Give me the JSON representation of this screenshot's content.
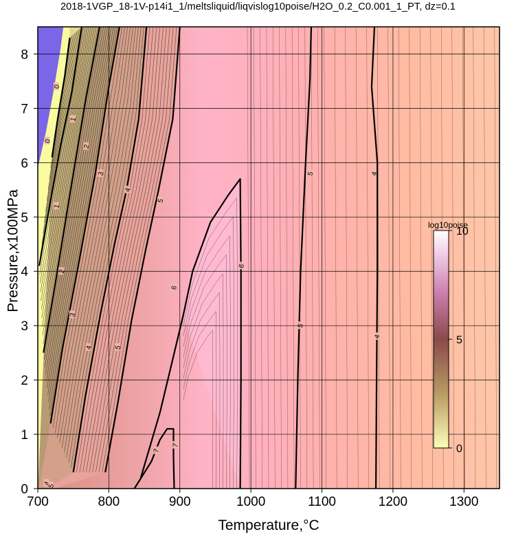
{
  "title": "2018-1VGP_18-1V-p14i1_1/meltsliquid/liqvislog10poise/H2O_0.2_C0.001_1_PT, dz=0.1",
  "chart_data": {
    "type": "heatmap",
    "subtype": "contour",
    "xlabel": "Temperature,°C",
    "ylabel": "Pressure,x100MPa",
    "xlim": [
      700,
      1350
    ],
    "ylim": [
      0,
      8.5
    ],
    "x_ticks": [
      700,
      800,
      900,
      1000,
      1100,
      1200,
      1300
    ],
    "x_tick_labels": [
      "700",
      "800",
      "900",
      "1000",
      "1100",
      "1200",
      "1300"
    ],
    "y_ticks": [
      0,
      1,
      2,
      3,
      4,
      5,
      6,
      7,
      8
    ],
    "y_tick_labels": [
      "0",
      "1",
      "2",
      "3",
      "4",
      "5",
      "6",
      "7",
      "8"
    ],
    "grid": true,
    "colorbar": {
      "title": "log10poise",
      "range": [
        0,
        10
      ],
      "tick_values": [
        0,
        5,
        10
      ],
      "tick_labels": [
        "0",
        "5",
        "10"
      ],
      "colors": [
        "#fdfdb8",
        "#8a5a4a",
        "#c87aa8",
        "#ffffff"
      ]
    },
    "contour_interval": 0.1,
    "major_contours": [
      {
        "level": 0,
        "label": "0",
        "points": [
          [
            720,
            6.1
          ],
          [
            728,
            6.8
          ],
          [
            738,
            7.6
          ],
          [
            745,
            8.3
          ]
        ]
      },
      {
        "level": 1,
        "label": "1",
        "points": [
          [
            702,
            4.1
          ],
          [
            718,
            5.3
          ],
          [
            732,
            6.3
          ],
          [
            748,
            7.3
          ],
          [
            762,
            8.5
          ]
        ]
      },
      {
        "level": 2,
        "label": "2",
        "points": [
          [
            708,
            2.5
          ],
          [
            725,
            3.8
          ],
          [
            745,
            5.4
          ],
          [
            768,
            7.2
          ],
          [
            787,
            8.5
          ]
        ]
      },
      {
        "level": 3,
        "label": "3",
        "points": [
          [
            718,
            1.2
          ],
          [
            735,
            2.6
          ],
          [
            757,
            4.1
          ],
          [
            781,
            5.8
          ],
          [
            800,
            7.4
          ],
          [
            815,
            8.5
          ]
        ]
      },
      {
        "level": 4,
        "label": "4",
        "points": [
          [
            750,
            0.3
          ],
          [
            767,
            1.7
          ],
          [
            788,
            3.2
          ],
          [
            808,
            4.5
          ],
          [
            825,
            5.5
          ],
          [
            842,
            6.8
          ],
          [
            853,
            8.5
          ]
        ]
      },
      {
        "level": 5,
        "label": "5",
        "points": [
          [
            795,
            0.3
          ],
          [
            813,
            1.6
          ],
          [
            832,
            3.1
          ],
          [
            852,
            4.4
          ],
          [
            870,
            5.5
          ],
          [
            890,
            6.8
          ],
          [
            900,
            8.5
          ]
        ]
      },
      {
        "level": 6,
        "label": "6",
        "points": [
          [
            845,
            0.2
          ],
          [
            872,
            1.4
          ],
          [
            905,
            3.2
          ],
          [
            918,
            4.0
          ],
          [
            943,
            4.9
          ],
          [
            968,
            5.4
          ],
          [
            985,
            5.7
          ],
          [
            986,
            4.0
          ],
          [
            986,
            2.0
          ],
          [
            985,
            0.0
          ]
        ]
      },
      {
        "level": 7,
        "label": "7",
        "points": [
          [
            836,
            0.0
          ],
          [
            860,
            0.5
          ],
          [
            872,
            0.9
          ],
          [
            882,
            1.1
          ],
          [
            891,
            1.1
          ],
          [
            891,
            0.6
          ],
          [
            892,
            0.0
          ]
        ]
      },
      {
        "level": 5,
        "label": "5",
        "points": [
          [
            1063,
            0.0
          ],
          [
            1066,
            2.0
          ],
          [
            1070,
            4.0
          ],
          [
            1077,
            6.0
          ],
          [
            1083,
            7.5
          ],
          [
            1085,
            8.5
          ]
        ]
      },
      {
        "level": 4,
        "label": "4",
        "points": [
          [
            1176,
            0.0
          ],
          [
            1177,
            2.0
          ],
          [
            1178,
            4.0
          ],
          [
            1178,
            6.0
          ],
          [
            1170,
            7.4
          ],
          [
            1174,
            8.5
          ]
        ]
      }
    ],
    "contour_labels": [
      {
        "text": "0",
        "x": 713,
        "y": 6.4
      },
      {
        "text": "0",
        "x": 726,
        "y": 7.4
      },
      {
        "text": "1",
        "x": 726,
        "y": 5.2
      },
      {
        "text": "1",
        "x": 749,
        "y": 6.8
      },
      {
        "text": "2",
        "x": 733,
        "y": 4.0
      },
      {
        "text": "2",
        "x": 768,
        "y": 6.3
      },
      {
        "text": "3",
        "x": 748,
        "y": 3.2
      },
      {
        "text": "3",
        "x": 788,
        "y": 5.8
      },
      {
        "text": "4",
        "x": 771,
        "y": 2.6
      },
      {
        "text": "4",
        "x": 826,
        "y": 5.5
      },
      {
        "text": "5",
        "x": 812,
        "y": 2.6
      },
      {
        "text": "5",
        "x": 872,
        "y": 5.3
      },
      {
        "text": "6",
        "x": 891,
        "y": 3.7
      },
      {
        "text": "6",
        "x": 986,
        "y": 4.1
      },
      {
        "text": "7",
        "x": 866,
        "y": 0.7
      },
      {
        "text": "7",
        "x": 893,
        "y": 0.8
      },
      {
        "text": "5",
        "x": 1069,
        "y": 3.0
      },
      {
        "text": "5",
        "x": 1083,
        "y": 5.8
      },
      {
        "text": "4",
        "x": 1177,
        "y": 2.8
      },
      {
        "text": "4",
        "x": 1173,
        "y": 5.8
      },
      {
        "text": "4",
        "x": 712,
        "y": 0.1
      },
      {
        "text": "5",
        "x": 718,
        "y": 0.05
      }
    ]
  }
}
